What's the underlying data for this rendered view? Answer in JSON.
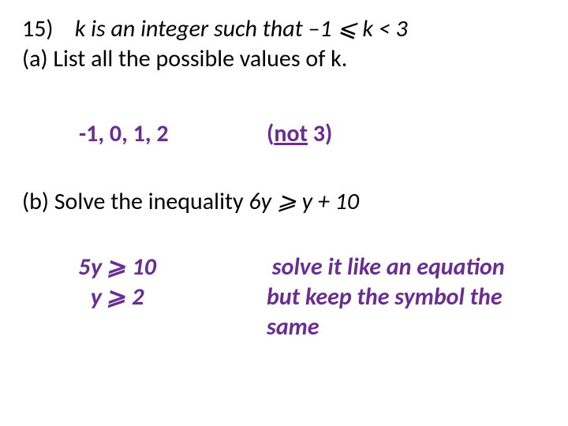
{
  "question": {
    "number": "15)",
    "prompt_prefix": "k is an integer such that ",
    "prompt_inequality": "–1 ⩽ k < 3",
    "part_a": "(a) List all the possible values of k.",
    "part_b_prefix": "(b) Solve the inequality ",
    "part_b_expr": "6y ⩾ y + 10"
  },
  "answers": {
    "a_values": "-1, 0, 1, 2",
    "a_note_open": "(",
    "a_note_word": "not",
    "a_note_close": " 3)",
    "b_line1": "5y ⩾ 10",
    "b_line2": "y ⩾ 2",
    "b_hint_l1": "solve it like an equation",
    "b_hint_l2": "but keep the symbol the",
    "b_hint_l3": "same"
  },
  "colors": {
    "text": "#000000",
    "accent": "#6a2d91",
    "background": "#ffffff"
  },
  "typography": {
    "base_fontsize": 30,
    "bold_weight": 700
  }
}
